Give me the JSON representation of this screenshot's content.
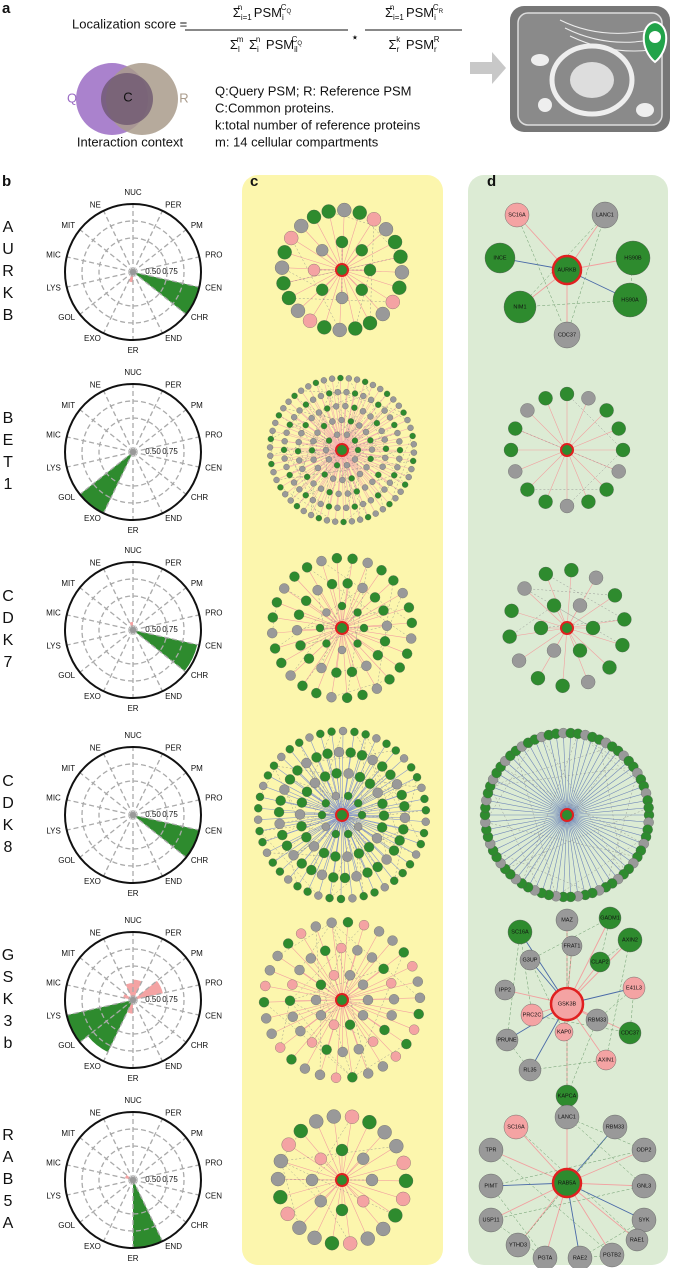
{
  "panel_a": {
    "label": "a",
    "lhs": "Localization score =",
    "f1_num": [
      "Σ",
      "i=1",
      "n",
      " PSM",
      "i",
      "C",
      "Q"
    ],
    "f1_den": [
      "Σ",
      "l",
      "m",
      " Σ",
      "i",
      "n",
      " PSM",
      "il",
      "C",
      "Q"
    ],
    "times": "⋆",
    "f2_num": [
      "Σ",
      "i=1",
      "n",
      " PSM",
      "i",
      "C",
      "R"
    ],
    "f2_den": [
      "Σ",
      "r",
      "k",
      " PSM",
      "r",
      "R"
    ],
    "venn": {
      "q": "Q",
      "c": "C",
      "r": "R",
      "caption": "Interaction context",
      "q_color": "#9b6cc4",
      "r_color": "#a99b8b"
    },
    "notes": [
      "Q:Query PSM; R: Reference PSM",
      "C:Common proteins.",
      "k:total number of reference proteins",
      "m: 14 cellular compartments"
    ]
  },
  "panel_b": {
    "label": "b"
  },
  "panel_c": {
    "label": "c"
  },
  "panel_d": {
    "label": "d",
    "networks": [
      {
        "nodes": [
          {
            "label": "AURKB",
            "color": "#2e8b2e"
          },
          {
            "label": "SC16A",
            "color": "#f4a3a3"
          },
          {
            "label": "LANC1",
            "color": "#999999"
          },
          {
            "label": "INCE",
            "color": "#2e8b2e"
          },
          {
            "label": "HS90B",
            "color": "#2e8b2e"
          },
          {
            "label": "NIM1",
            "color": "#2e8b2e"
          },
          {
            "label": "HS90A",
            "color": "#2e8b2e"
          },
          {
            "label": "CDC37",
            "color": "#999999"
          }
        ]
      },
      {
        "nodes": [
          {
            "label": "GSK3B",
            "color": "#f4a3a3"
          },
          {
            "label": "MAZ",
            "color": "#999999"
          },
          {
            "label": "GADM1",
            "color": "#2e8b2e"
          },
          {
            "label": "SC16A",
            "color": "#2e8b2e"
          },
          {
            "label": "FRAT1",
            "color": "#999999"
          },
          {
            "label": "AXIN2",
            "color": "#2e8b2e"
          },
          {
            "label": "G3UP",
            "color": "#999999"
          },
          {
            "label": "CLAP2",
            "color": "#2e8b2e"
          },
          {
            "label": "IPP2",
            "color": "#999999"
          },
          {
            "label": "E41L3",
            "color": "#f4a3a3"
          },
          {
            "label": "PRC2C",
            "color": "#f4a3a3"
          },
          {
            "label": "RBM33",
            "color": "#999999"
          },
          {
            "label": "PRUNE",
            "color": "#999999"
          },
          {
            "label": "KAP0",
            "color": "#f4a3a3"
          },
          {
            "label": "CDC37",
            "color": "#2e8b2e"
          },
          {
            "label": "RL35",
            "color": "#999999"
          },
          {
            "label": "AXIN1",
            "color": "#f4a3a3"
          },
          {
            "label": "KAPCA",
            "color": "#2e8b2e"
          }
        ]
      },
      {
        "nodes": [
          {
            "label": "RAB5A",
            "color": "#2e8b2e"
          },
          {
            "label": "SC16A",
            "color": "#f4a3a3"
          },
          {
            "label": "LANC1",
            "color": "#999999"
          },
          {
            "label": "RBM33",
            "color": "#999999"
          },
          {
            "label": "TPR",
            "color": "#999999"
          },
          {
            "label": "ODP2",
            "color": "#999999"
          },
          {
            "label": "PIMT",
            "color": "#999999"
          },
          {
            "label": "GNL3",
            "color": "#999999"
          },
          {
            "label": "USP11",
            "color": "#999999"
          },
          {
            "label": "SYK",
            "color": "#999999"
          },
          {
            "label": "YTHD3",
            "color": "#999999"
          },
          {
            "label": "PGTA",
            "color": "#999999"
          },
          {
            "label": "RAE2",
            "color": "#999999"
          },
          {
            "label": "PGTB2",
            "color": "#999999"
          },
          {
            "label": "RAE1",
            "color": "#999999"
          }
        ]
      }
    ]
  },
  "chart_data": [
    {
      "type": "polar",
      "title_letters": [
        "A",
        "U",
        "R",
        "K",
        "B"
      ],
      "categories": [
        "NUC",
        "PER",
        "PM",
        "PRO",
        "CEN",
        "CHR",
        "END",
        "ER",
        "EXO",
        "GOL",
        "LYS",
        "MIC",
        "MIT",
        "NE"
      ],
      "rlim": [
        0,
        1
      ],
      "rticks": [
        {
          "value": 0.5,
          "label": "0.50"
        },
        {
          "value": 0.75,
          "label": "0.75"
        }
      ],
      "series": [
        {
          "color": "#2e8b2e",
          "values": [
            null,
            null,
            null,
            null,
            1.0,
            null,
            null,
            null,
            null,
            null,
            null,
            null,
            null,
            null
          ]
        },
        {
          "color": "#f4a3a3",
          "values": [
            null,
            null,
            null,
            null,
            null,
            null,
            null,
            0.15,
            null,
            null,
            null,
            null,
            null,
            null
          ]
        }
      ]
    },
    {
      "type": "polar",
      "title_letters": [
        "B",
        "E",
        "T",
        "1"
      ],
      "categories": [
        "NUC",
        "PER",
        "PM",
        "PRO",
        "CEN",
        "CHR",
        "END",
        "ER",
        "EXO",
        "GOL",
        "LYS",
        "MIC",
        "MIT",
        "NE"
      ],
      "rlim": [
        0,
        1
      ],
      "rticks": [
        {
          "value": 0.5,
          "label": "0.50"
        },
        {
          "value": 0.75,
          "label": "0.75"
        }
      ],
      "series": [
        {
          "color": "#2e8b2e",
          "values": [
            null,
            null,
            null,
            null,
            null,
            null,
            null,
            null,
            1.0,
            null,
            null,
            null,
            null,
            null
          ]
        },
        {
          "color": "#f4a3a3",
          "values": [
            null,
            null,
            null,
            null,
            null,
            null,
            null,
            null,
            null,
            null,
            null,
            null,
            null,
            null
          ]
        }
      ]
    },
    {
      "type": "polar",
      "title_letters": [
        "C",
        "D",
        "K",
        "7"
      ],
      "categories": [
        "NUC",
        "PER",
        "PM",
        "PRO",
        "CEN",
        "CHR",
        "END",
        "ER",
        "EXO",
        "GOL",
        "LYS",
        "MIC",
        "MIT",
        "NE"
      ],
      "rlim": [
        0,
        1
      ],
      "rticks": [
        {
          "value": 0.5,
          "label": "0.50"
        },
        {
          "value": 0.75,
          "label": "0.75"
        }
      ],
      "series": [
        {
          "color": "#2e8b2e",
          "values": [
            null,
            null,
            null,
            null,
            0.97,
            null,
            null,
            null,
            null,
            null,
            null,
            null,
            null,
            null
          ]
        },
        {
          "color": "#f4a3a3",
          "values": [
            null,
            null,
            null,
            null,
            null,
            null,
            null,
            null,
            null,
            null,
            null,
            null,
            null,
            0.12
          ]
        }
      ]
    },
    {
      "type": "polar",
      "title_letters": [
        "C",
        "D",
        "K",
        "8"
      ],
      "categories": [
        "NUC",
        "PER",
        "PM",
        "PRO",
        "CEN",
        "CHR",
        "END",
        "ER",
        "EXO",
        "GOL",
        "LYS",
        "MIC",
        "MIT",
        "NE"
      ],
      "rlim": [
        0,
        1
      ],
      "rticks": [
        {
          "value": 0.5,
          "label": "0.50"
        },
        {
          "value": 0.75,
          "label": "0.75"
        }
      ],
      "series": [
        {
          "color": "#2e8b2e",
          "values": [
            null,
            null,
            null,
            null,
            1.0,
            null,
            null,
            null,
            null,
            null,
            null,
            null,
            null,
            null
          ]
        },
        {
          "color": "#f4a3a3",
          "values": [
            null,
            null,
            null,
            null,
            null,
            null,
            null,
            null,
            null,
            null,
            null,
            null,
            null,
            null
          ]
        }
      ]
    },
    {
      "type": "polar",
      "title_letters": [
        "G",
        "S",
        "K",
        "3",
        "b"
      ],
      "categories": [
        "NUC",
        "PER",
        "PM",
        "PRO",
        "CEN",
        "CHR",
        "END",
        "ER",
        "EXO",
        "GOL",
        "LYS",
        "MIC",
        "MIT",
        "NE"
      ],
      "rlim": [
        0,
        1
      ],
      "rticks": [
        {
          "value": 0.5,
          "label": "0.50"
        },
        {
          "value": 0.75,
          "label": "0.75"
        }
      ],
      "series": [
        {
          "color": "#2e8b2e",
          "values": [
            null,
            null,
            null,
            null,
            null,
            null,
            null,
            null,
            0.85,
            1.0,
            null,
            null,
            null,
            null
          ]
        },
        {
          "color": "#f4a3a3",
          "values": [
            0.3,
            null,
            0.45,
            null,
            null,
            null,
            null,
            0.2,
            null,
            null,
            null,
            0.15,
            null,
            0.25
          ]
        }
      ]
    },
    {
      "type": "polar",
      "title_letters": [
        "R",
        "A",
        "B",
        "5",
        "A"
      ],
      "categories": [
        "NUC",
        "PER",
        "PM",
        "PRO",
        "CEN",
        "CHR",
        "END",
        "ER",
        "EXO",
        "GOL",
        "LYS",
        "MIC",
        "MIT",
        "NE"
      ],
      "rlim": [
        0,
        1
      ],
      "rticks": [
        {
          "value": 0.5,
          "label": "0.50"
        },
        {
          "value": 0.75,
          "label": "0.75"
        }
      ],
      "series": [
        {
          "color": "#2e8b2e",
          "values": [
            null,
            null,
            null,
            null,
            null,
            null,
            1.0,
            null,
            null,
            null,
            null,
            null,
            null,
            null
          ]
        },
        {
          "color": "#f4a3a3",
          "values": [
            null,
            null,
            null,
            null,
            null,
            null,
            null,
            null,
            null,
            null,
            null,
            0.12,
            null,
            null
          ]
        }
      ]
    }
  ]
}
